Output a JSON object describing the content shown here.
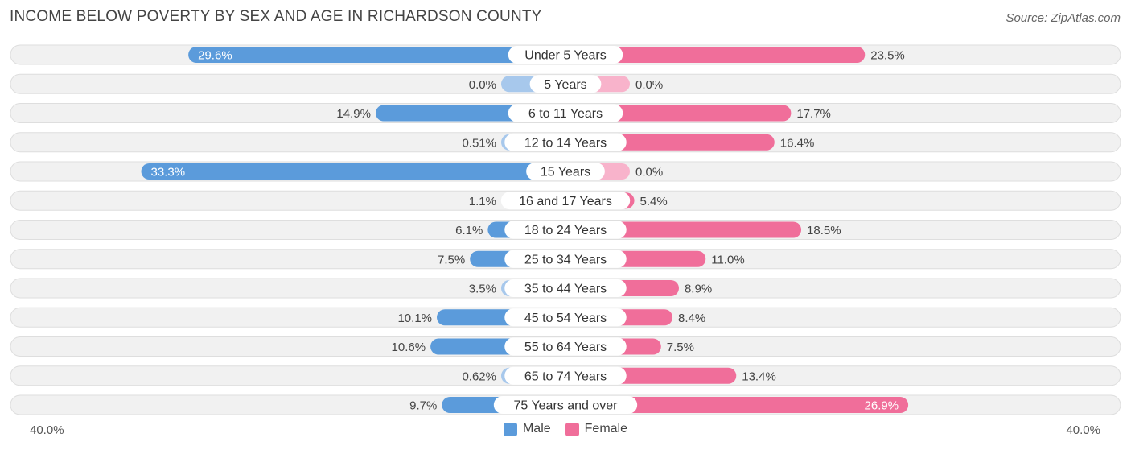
{
  "title": "INCOME BELOW POVERTY BY SEX AND AGE IN RICHARDSON COUNTY",
  "source": "Source: ZipAtlas.com",
  "colors": {
    "male_strong": "#5b9bdb",
    "male_light": "#a7c8ec",
    "female_strong": "#f06e9a",
    "female_light": "#f8b3cb",
    "row_bg": "#f1f1f1",
    "row_border": "#dedede"
  },
  "legend": {
    "male_label": "Male",
    "female_label": "Female"
  },
  "axis": {
    "left_label": "40.0%",
    "right_label": "40.0%"
  },
  "chart_data": {
    "type": "bar",
    "orientation": "horizontal-diverging",
    "xlim": [
      0,
      40
    ],
    "categories": [
      "Under 5 Years",
      "5 Years",
      "6 to 11 Years",
      "12 to 14 Years",
      "15 Years",
      "16 and 17 Years",
      "18 to 24 Years",
      "25 to 34 Years",
      "35 to 44 Years",
      "45 to 54 Years",
      "55 to 64 Years",
      "65 to 74 Years",
      "75 Years and over"
    ],
    "series": [
      {
        "name": "Male",
        "values": [
          29.6,
          0.0,
          14.9,
          0.51,
          33.3,
          1.1,
          6.1,
          7.5,
          3.5,
          10.1,
          10.6,
          0.62,
          9.7
        ],
        "labels": [
          "29.6%",
          "0.0%",
          "14.9%",
          "0.51%",
          "33.3%",
          "1.1%",
          "6.1%",
          "7.5%",
          "3.5%",
          "10.1%",
          "10.6%",
          "0.62%",
          "9.7%"
        ]
      },
      {
        "name": "Female",
        "values": [
          23.5,
          0.0,
          17.7,
          16.4,
          0.0,
          5.4,
          18.5,
          11.0,
          8.9,
          8.4,
          7.5,
          13.4,
          26.9
        ],
        "labels": [
          "23.5%",
          "0.0%",
          "17.7%",
          "16.4%",
          "0.0%",
          "5.4%",
          "18.5%",
          "11.0%",
          "8.9%",
          "8.4%",
          "7.5%",
          "13.4%",
          "26.9%"
        ]
      }
    ]
  }
}
